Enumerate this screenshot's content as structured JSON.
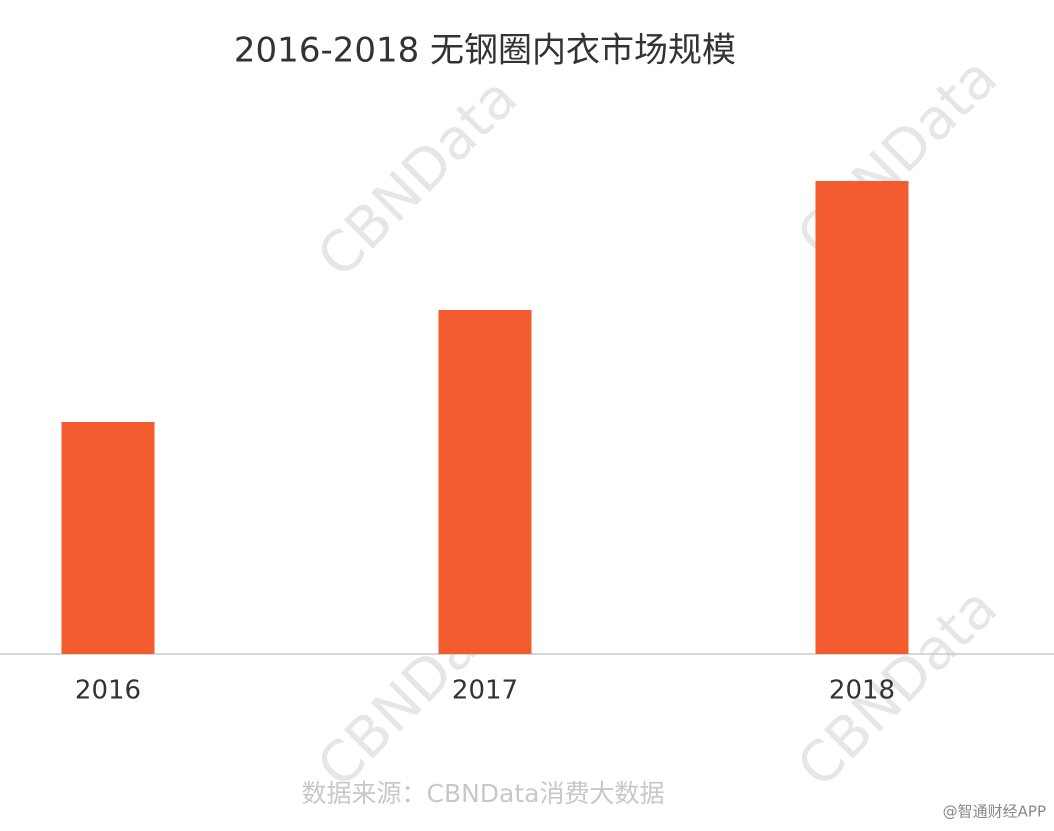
{
  "chart_data": {
    "type": "bar",
    "title": "2016-2018 无钢圈内衣市场规模",
    "categories": [
      "2016",
      "2017",
      "2018"
    ],
    "values": [
      232,
      344,
      473
    ],
    "color": "#f25c2e",
    "ylim": [
      0,
      500
    ],
    "source": "数据来源：CBNData消费大数据",
    "watermark": "CBNData",
    "corner_watermark": "@智通财经APP"
  }
}
